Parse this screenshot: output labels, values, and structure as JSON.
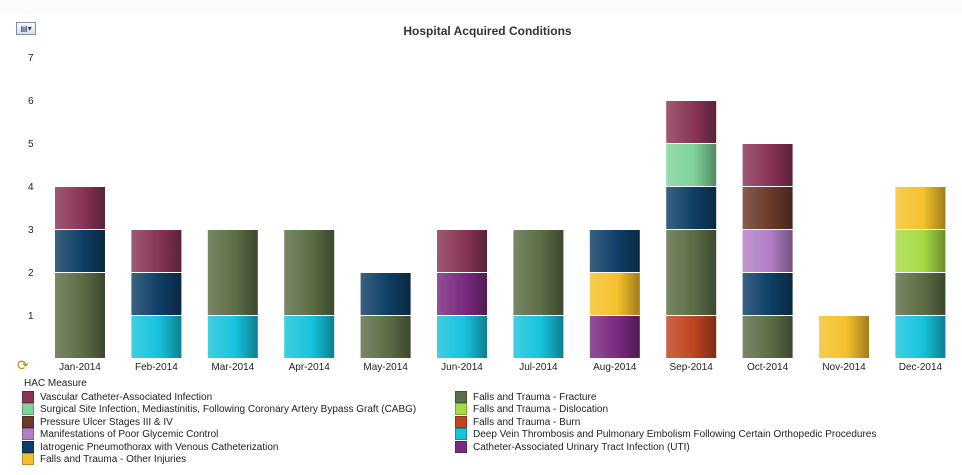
{
  "toolbar": {
    "chart_menu_icon": "chart-menu-icon",
    "refresh_icon": "refresh-icon"
  },
  "chart_data": {
    "type": "bar",
    "stacked": true,
    "title": "Hospital Acquired Conditions",
    "xlabel": "",
    "ylabel": "",
    "ylim": [
      0,
      7
    ],
    "yticks": [
      1,
      2,
      3,
      4,
      5,
      6,
      7
    ],
    "grid": false,
    "legend_title": "HAC Measure",
    "legend_position": "bottom",
    "categories": [
      "Jan-2014",
      "Feb-2014",
      "Mar-2014",
      "Apr-2014",
      "May-2014",
      "Jun-2014",
      "Jul-2014",
      "Aug-2014",
      "Sep-2014",
      "Oct-2014",
      "Nov-2014",
      "Dec-2014"
    ],
    "series": [
      {
        "name": "Falls and Trauma - Burn",
        "color": "#c0441f",
        "values": [
          0,
          0,
          0,
          0,
          0,
          0,
          0,
          0,
          1,
          0,
          0,
          0
        ]
      },
      {
        "name": "Deep Vein Thrombosis and Pulmonary Embolism Following Certain Orthopedic Procedures",
        "color": "#16c3dc",
        "values": [
          0,
          1,
          1,
          1,
          0,
          1,
          1,
          0,
          0,
          0,
          0,
          1
        ]
      },
      {
        "name": "Catheter-Associated Urinary Tract Infection (UTI)",
        "color": "#7a2a80",
        "values": [
          0,
          0,
          0,
          0,
          0,
          1,
          0,
          1,
          0,
          0,
          0,
          0
        ]
      },
      {
        "name": "Falls and Trauma - Fracture",
        "color": "#5c6e46",
        "values": [
          2,
          0,
          2,
          2,
          1,
          0,
          2,
          0,
          2,
          1,
          0,
          1
        ]
      },
      {
        "name": "Falls and Trauma - Dislocation",
        "color": "#a6db45",
        "values": [
          0,
          0,
          0,
          0,
          0,
          0,
          0,
          0,
          0,
          0,
          0,
          1
        ]
      },
      {
        "name": "Falls and Trauma - Other Injuries",
        "color": "#f5c12b",
        "values": [
          0,
          0,
          0,
          0,
          0,
          0,
          0,
          1,
          0,
          0,
          1,
          1
        ]
      },
      {
        "name": "Iatrogenic Pneumothorax with Venous Catheterization",
        "color": "#0f3f66",
        "values": [
          1,
          1,
          0,
          0,
          1,
          0,
          0,
          1,
          1,
          1,
          0,
          0
        ]
      },
      {
        "name": "Manifestations of Poor Glycemic Control",
        "color": "#b27fc6",
        "values": [
          0,
          0,
          0,
          0,
          0,
          0,
          0,
          0,
          0,
          1,
          0,
          0
        ]
      },
      {
        "name": "Pressure Ulcer Stages III & IV",
        "color": "#6b3a2a",
        "values": [
          0,
          0,
          0,
          0,
          0,
          0,
          0,
          0,
          0,
          1,
          0,
          0
        ]
      },
      {
        "name": "Surgical Site Infection, Mediastinitis, Following Coronary Artery Bypass Graft (CABG)",
        "color": "#7fd39a",
        "values": [
          0,
          0,
          0,
          0,
          0,
          0,
          0,
          0,
          1,
          0,
          0,
          0
        ]
      },
      {
        "name": "Vascular Catheter-Associated Infection",
        "color": "#8a3556",
        "values": [
          1,
          1,
          0,
          0,
          0,
          1,
          0,
          0,
          1,
          1,
          0,
          0
        ]
      }
    ],
    "legend_order": [
      "Vascular Catheter-Associated Infection",
      "Surgical Site Infection, Mediastinitis, Following Coronary Artery Bypass Graft (CABG)",
      "Pressure Ulcer Stages III & IV",
      "Manifestations of Poor Glycemic Control",
      "Iatrogenic Pneumothorax with Venous Catheterization",
      "Falls and Trauma - Other Injuries",
      "Falls and Trauma - Fracture",
      "Falls and Trauma - Dislocation",
      "Falls and Trauma - Burn",
      "Deep Vein Thrombosis and Pulmonary Embolism Following Certain Orthopedic Procedures",
      "Catheter-Associated Urinary Tract Infection (UTI)"
    ]
  }
}
